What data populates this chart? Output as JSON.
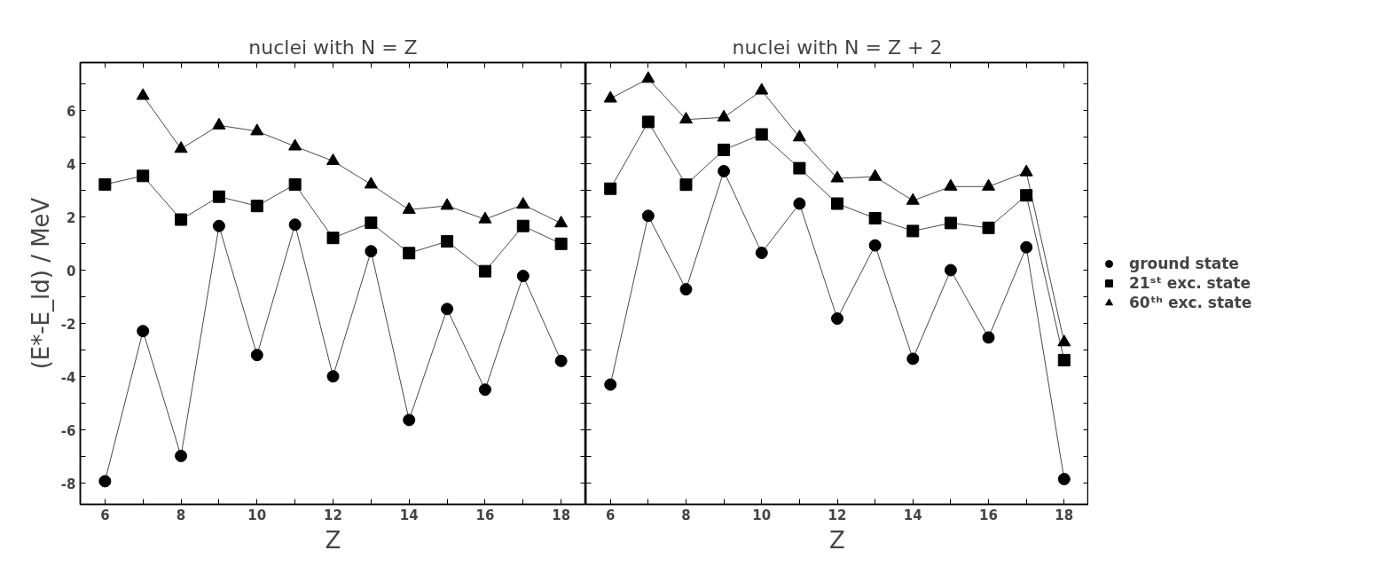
{
  "chart_data": [
    {
      "type": "line",
      "title": "nuclei with N = Z",
      "xlabel": "Z",
      "ylabel": "(E*-E_ld) / MeV",
      "x": [
        6,
        7,
        8,
        9,
        10,
        11,
        12,
        13,
        14,
        15,
        16,
        17,
        18
      ],
      "xlim": [
        5.35,
        18.65
      ],
      "ylim": [
        -8.8,
        7.8
      ],
      "xticks": [
        6,
        {
          "value": 7,
          "label": null
        },
        8,
        {
          "value": 9,
          "label": null
        },
        10,
        {
          "value": 11,
          "label": null
        },
        12,
        {
          "value": 13,
          "label": null
        },
        14,
        {
          "value": 15,
          "label": null
        },
        16,
        {
          "value": 17,
          "label": null
        },
        18
      ],
      "yticks": [
        -8,
        {
          "value": -7,
          "label": null
        },
        -6,
        {
          "value": -5,
          "label": null
        },
        -4,
        {
          "value": -3,
          "label": null
        },
        -2,
        {
          "value": -1,
          "label": null
        },
        0,
        {
          "value": 1,
          "label": null
        },
        2,
        {
          "value": 3,
          "label": null
        },
        4,
        {
          "value": 5,
          "label": null
        },
        6,
        {
          "value": 7,
          "label": null
        }
      ],
      "grid": false,
      "legend": false,
      "series": [
        {
          "color": "#000000",
          "marker": "circle",
          "values": [
            -7.93,
            -2.29,
            -6.98,
            1.66,
            -3.19,
            1.71,
            -3.99,
            0.71,
            -5.63,
            -1.46,
            -4.49,
            -0.22,
            -3.41
          ]
        },
        {
          "color": "#000000",
          "marker": "square",
          "values": [
            3.22,
            3.54,
            1.9,
            2.76,
            2.41,
            3.22,
            1.21,
            1.78,
            0.64,
            1.08,
            -0.04,
            1.66,
            0.99
          ]
        },
        {
          "color": "#000000",
          "marker": "triangle",
          "values": [
            null,
            6.55,
            4.56,
            5.44,
            5.22,
            4.65,
            4.1,
            3.22,
            2.27,
            2.42,
            1.91,
            2.46,
            1.76
          ]
        }
      ]
    },
    {
      "type": "line",
      "title": "nuclei with N = Z + 2",
      "xlabel": "Z",
      "x": [
        6,
        7,
        8,
        9,
        10,
        11,
        12,
        13,
        14,
        15,
        16,
        17,
        18
      ],
      "xlim": [
        5.35,
        18.65
      ],
      "ylim": [
        -8.8,
        7.8
      ],
      "xticks": [
        6,
        {
          "value": 7,
          "label": null
        },
        8,
        {
          "value": 9,
          "label": null
        },
        10,
        {
          "value": 11,
          "label": null
        },
        12,
        {
          "value": 13,
          "label": null
        },
        14,
        {
          "value": 15,
          "label": null
        },
        16,
        {
          "value": 17,
          "label": null
        },
        18
      ],
      "yticks": [
        {
          "value": -8,
          "label": null
        },
        {
          "value": -7,
          "label": null
        },
        {
          "value": -6,
          "label": null
        },
        {
          "value": -5,
          "label": null
        },
        {
          "value": -4,
          "label": null
        },
        {
          "value": -3,
          "label": null
        },
        {
          "value": -2,
          "label": null
        },
        {
          "value": -1,
          "label": null
        },
        {
          "value": 0,
          "label": null
        },
        {
          "value": 1,
          "label": null
        },
        {
          "value": 2,
          "label": null
        },
        {
          "value": 3,
          "label": null
        },
        {
          "value": 4,
          "label": null
        },
        {
          "value": 5,
          "label": null
        },
        {
          "value": 6,
          "label": null
        },
        {
          "value": 7,
          "label": null
        }
      ],
      "tick_labels": "x",
      "grid": false,
      "legend": "right",
      "series": [
        {
          "name": "ground state",
          "color": "#000000",
          "marker": "circle",
          "values": [
            -4.3,
            2.04,
            -0.72,
            3.72,
            0.65,
            2.5,
            -1.82,
            0.93,
            -3.33,
            0.0,
            -2.53,
            0.86,
            -7.85
          ]
        },
        {
          "name": "21ˢᵗ exc. state",
          "color": "#000000",
          "marker": "square",
          "values": [
            3.06,
            5.57,
            3.21,
            4.52,
            5.1,
            3.83,
            2.5,
            1.95,
            1.47,
            1.77,
            1.59,
            2.81,
            -3.38
          ]
        },
        {
          "name": "60ᵗʰ exc. state",
          "color": "#000000",
          "marker": "triangle",
          "values": [
            6.45,
            7.19,
            5.66,
            5.74,
            6.75,
            4.99,
            3.45,
            3.51,
            2.61,
            3.14,
            3.14,
            3.68,
            -2.71
          ]
        }
      ]
    }
  ]
}
